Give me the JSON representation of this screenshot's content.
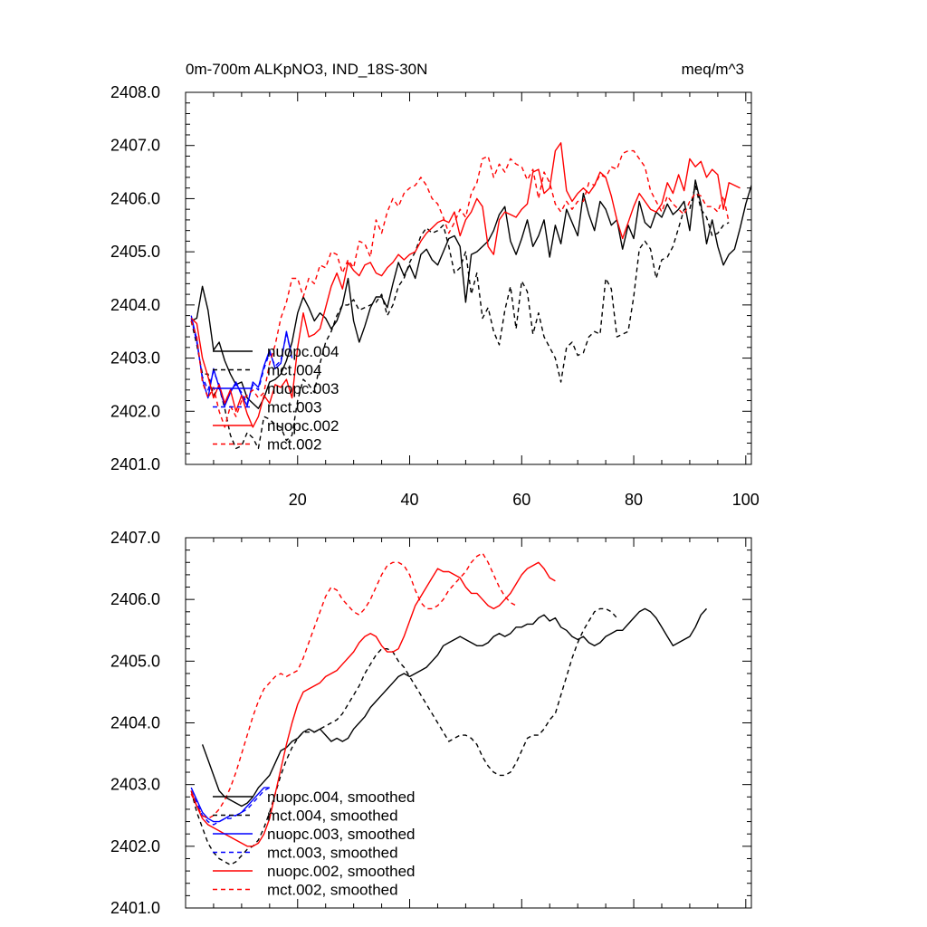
{
  "chart_data": [
    {
      "type": "line",
      "title": "0m-700m ALKpNO3, IND_18S-30N",
      "title_right": "meq/m^3",
      "xlabel": "",
      "ylabel": "",
      "xlim": [
        0,
        101
      ],
      "ylim": [
        2401.0,
        2408.0
      ],
      "xticks": [
        20,
        40,
        60,
        80,
        100
      ],
      "xtick_labels": [
        "20",
        "40",
        "60",
        "80",
        "100"
      ],
      "yticks": [
        2401.0,
        2402.0,
        2403.0,
        2404.0,
        2405.0,
        2406.0,
        2407.0,
        2408.0
      ],
      "ytick_labels": [
        "2401.0",
        "2402.0",
        "2403.0",
        "2404.0",
        "2405.0",
        "2406.0",
        "2407.0",
        "2408.0"
      ],
      "grid": false,
      "legend_position": "lower-left",
      "series": [
        {
          "name": "nuopc.004",
          "color": "#000000",
          "dash": "solid",
          "x_start": 1,
          "values": [
            2403.7,
            2403.75,
            2404.35,
            2403.9,
            2403.15,
            2403.3,
            2402.95,
            2402.7,
            2402.5,
            2402.55,
            2402.25,
            2402.15,
            2402.05,
            2402.25,
            2402.55,
            2402.6,
            2402.7,
            2402.95,
            2403.3,
            2403.85,
            2404.15,
            2403.95,
            2403.7,
            2403.85,
            2403.75,
            2403.55,
            2403.7,
            2404.0,
            2404.5,
            2403.7,
            2403.3,
            2403.6,
            2403.95,
            2404.15,
            2404.15,
            2403.95,
            2404.4,
            2404.8,
            2404.55,
            2404.75,
            2404.5,
            2404.95,
            2405.05,
            2404.85,
            2404.75,
            2405.0,
            2405.25,
            2405.3,
            2405.1,
            2404.05,
            2404.95,
            2405.0,
            2405.1,
            2405.2,
            2405.4,
            2405.7,
            2405.85,
            2405.2,
            2404.95,
            2405.25,
            2405.6,
            2405.1,
            2405.3,
            2405.6,
            2404.9,
            2405.5,
            2405.15,
            2405.8,
            2405.55,
            2405.3,
            2406.1,
            2405.7,
            2405.4,
            2405.95,
            2405.8,
            2405.5,
            2405.6,
            2405.05,
            2405.5,
            2405.25,
            2405.95,
            2405.55,
            2405.45,
            2405.75,
            2405.65,
            2405.9,
            2405.7,
            2405.8,
            2405.95,
            2405.4,
            2406.35,
            2405.9,
            2405.15,
            2405.6,
            2405.1,
            2404.75,
            2404.95,
            2405.05,
            2405.45,
            2405.9,
            2406.25,
            2405.85,
            2405.55
          ]
        },
        {
          "name": "mct.004",
          "color": "#000000",
          "dash": "dashed",
          "x_start": 1,
          "values": [
            2403.7,
            2403.25,
            2402.7,
            2402.7,
            2402.3,
            2402.45,
            2402.05,
            2401.55,
            2401.3,
            2401.35,
            2401.6,
            2401.5,
            2401.3,
            2401.9,
            2401.85,
            2401.75,
            2401.7,
            2401.45,
            2401.55,
            2402.2,
            2402.6,
            2402.5,
            2402.35,
            2402.9,
            2403.3,
            2403.5,
            2403.8,
            2404.0,
            2404.0,
            2404.1,
            2403.9,
            2403.95,
            2404.0,
            2404.05,
            2404.2,
            2403.8,
            2404.0,
            2404.35,
            2404.5,
            2404.8,
            2405.0,
            2405.3,
            2405.45,
            2405.35,
            2405.4,
            2405.5,
            2405.1,
            2404.6,
            2404.7,
            2405.0,
            2404.2,
            2404.6,
            2403.75,
            2403.95,
            2403.5,
            2403.25,
            2403.9,
            2404.35,
            2403.55,
            2404.45,
            2404.25,
            2403.45,
            2403.85,
            2403.4,
            2403.2,
            2403.0,
            2402.55,
            2403.2,
            2403.3,
            2403.05,
            2403.1,
            2403.4,
            2403.5,
            2403.45,
            2404.5,
            2404.3,
            2403.4,
            2403.45,
            2403.5,
            2404.15,
            2405.05,
            2405.2,
            2405.05,
            2404.5,
            2404.85,
            2404.9,
            2405.1,
            2405.45,
            2405.8,
            2405.8,
            2406.25,
            2405.8,
            2405.65,
            2405.3,
            2405.35,
            2405.5,
            2405.55
          ]
        },
        {
          "name": "nuopc.003",
          "color": "#0000ff",
          "dash": "solid",
          "x_start": 1,
          "values": [
            2403.8,
            2403.35,
            2402.6,
            2402.25,
            2402.8,
            2402.45,
            2402.1,
            2402.35,
            2402.55,
            2402.3,
            2402.1,
            2402.55,
            2402.45,
            2402.85,
            2403.15,
            2402.8,
            2402.9,
            2403.5,
            2403.0
          ]
        },
        {
          "name": "mct.003",
          "color": "#0000ff",
          "dash": "dashed",
          "x_start": 1,
          "values": [
            2403.75,
            2403.3,
            2402.65,
            2402.4,
            2402.75,
            2402.5,
            2402.15,
            2402.4,
            2402.5,
            2402.35,
            2402.15,
            2402.5,
            2402.4,
            2402.8,
            2403.1,
            2402.85,
            2402.95,
            2403.45,
            2403.05
          ]
        },
        {
          "name": "nuopc.002",
          "color": "#ff0000",
          "dash": "solid",
          "x_start": 1,
          "values": [
            2403.75,
            2403.65,
            2403.0,
            2402.65,
            2402.25,
            2402.5,
            2402.15,
            2402.4,
            2402.0,
            2402.3,
            2401.95,
            2401.7,
            2401.9,
            2402.3,
            2402.15,
            2402.5,
            2402.45,
            2402.6,
            2402.25,
            2403.2,
            2403.85,
            2403.4,
            2403.45,
            2403.55,
            2403.95,
            2404.35,
            2404.6,
            2404.3,
            2404.8,
            2404.65,
            2404.55,
            2404.75,
            2404.8,
            2404.6,
            2404.55,
            2404.7,
            2404.8,
            2404.95,
            2404.85,
            2404.95,
            2405.0,
            2405.2,
            2405.35,
            2405.45,
            2405.55,
            2405.6,
            2405.55,
            2405.75,
            2405.3,
            2405.6,
            2405.75,
            2406.0,
            2405.85,
            2405.1,
            2404.95,
            2405.6,
            2405.75,
            2405.7,
            2405.65,
            2405.8,
            2405.9,
            2406.5,
            2406.55,
            2406.1,
            2406.2,
            2406.9,
            2407.05,
            2406.15,
            2405.95,
            2406.1,
            2406.2,
            2406.1,
            2406.25,
            2406.5,
            2406.4,
            2406.05,
            2405.6,
            2405.25,
            2405.55,
            2405.85,
            2406.1,
            2405.95,
            2405.8,
            2405.75,
            2405.9,
            2406.3,
            2406.1,
            2406.45,
            2406.15,
            2406.75,
            2406.6,
            2406.7,
            2406.4,
            2406.55,
            2406.45,
            2405.8,
            2406.3,
            2406.25,
            2406.2
          ]
        },
        {
          "name": "mct.002",
          "color": "#ff0000",
          "dash": "dashed",
          "x_start": 1,
          "values": [
            2403.7,
            2403.4,
            2402.55,
            2402.25,
            2402.45,
            2402.0,
            2401.7,
            2402.1,
            2401.9,
            2402.2,
            2402.3,
            2402.4,
            2402.25,
            2402.35,
            2402.9,
            2403.25,
            2403.75,
            2404.05,
            2404.5,
            2404.5,
            2404.15,
            2404.5,
            2404.4,
            2404.75,
            2404.7,
            2405.0,
            2404.95,
            2404.6,
            2404.85,
            2404.7,
            2405.2,
            2405.15,
            2404.9,
            2405.6,
            2405.35,
            2405.75,
            2406.0,
            2405.85,
            2406.1,
            2406.2,
            2406.25,
            2406.4,
            2406.25,
            2406.0,
            2405.9,
            2405.65,
            2405.35,
            2405.55,
            2405.8,
            2405.65,
            2406.1,
            2406.3,
            2406.75,
            2406.8,
            2406.4,
            2406.65,
            2406.5,
            2406.75,
            2406.65,
            2406.6,
            2406.35,
            2406.55,
            2406.0,
            2406.5,
            2406.3,
            2405.9,
            2405.75,
            2405.95,
            2405.8,
            2405.95,
            2405.95,
            2406.3,
            2406.25,
            2406.45,
            2406.4,
            2406.6,
            2406.55,
            2406.85,
            2406.9,
            2406.9,
            2406.75,
            2406.6,
            2406.15,
            2405.95,
            2405.75,
            2406.05,
            2405.9,
            2405.8,
            2405.7,
            2405.95,
            2406.1,
            2406.05,
            2405.85,
            2405.85,
            2405.75,
            2406.05,
            2405.55
          ]
        }
      ]
    },
    {
      "type": "line",
      "title": "",
      "xlabel": "",
      "ylabel": "",
      "xlim": [
        0,
        101
      ],
      "ylim": [
        2401.0,
        2407.0
      ],
      "xticks": [
        20,
        40,
        60,
        80,
        100
      ],
      "xtick_labels": [
        "",
        "",
        "",
        "",
        ""
      ],
      "yticks": [
        2401.0,
        2402.0,
        2403.0,
        2404.0,
        2405.0,
        2406.0,
        2407.0
      ],
      "ytick_labels": [
        "2401.0",
        "2402.0",
        "2403.0",
        "2404.0",
        "2405.0",
        "2406.0",
        "2407.0"
      ],
      "grid": false,
      "legend_position": "lower-left",
      "series": [
        {
          "name": "nuopc.004, smoothed",
          "color": "#000000",
          "dash": "solid",
          "x_start": 3,
          "values": [
            2403.65,
            2403.4,
            2403.15,
            2402.9,
            2402.8,
            2402.75,
            2402.7,
            2402.65,
            2402.7,
            2402.8,
            2402.95,
            2403.05,
            2403.15,
            2403.35,
            2403.55,
            2403.6,
            2403.7,
            2403.75,
            2403.85,
            2403.9,
            2403.85,
            2403.9,
            2403.8,
            2403.7,
            2403.75,
            2403.7,
            2403.75,
            2403.9,
            2404.0,
            2404.1,
            2404.25,
            2404.35,
            2404.45,
            2404.55,
            2404.65,
            2404.75,
            2404.8,
            2404.75,
            2404.8,
            2404.85,
            2404.9,
            2405.0,
            2405.1,
            2405.25,
            2405.3,
            2405.35,
            2405.4,
            2405.35,
            2405.3,
            2405.25,
            2405.25,
            2405.3,
            2405.4,
            2405.45,
            2405.4,
            2405.45,
            2405.55,
            2405.55,
            2405.6,
            2405.6,
            2405.7,
            2405.75,
            2405.65,
            2405.7,
            2405.55,
            2405.5,
            2405.4,
            2405.35,
            2405.4,
            2405.3,
            2405.25,
            2405.3,
            2405.4,
            2405.45,
            2405.5,
            2405.5,
            2405.6,
            2405.7,
            2405.8,
            2405.85,
            2405.8,
            2405.7,
            2405.55,
            2405.4,
            2405.25,
            2405.3,
            2405.35,
            2405.4,
            2405.55,
            2405.75,
            2405.85
          ]
        },
        {
          "name": "mct.004, smoothed",
          "color": "#000000",
          "dash": "dashed",
          "x_start": 1,
          "values": [
            2402.9,
            2402.55,
            2402.3,
            2402.05,
            2401.9,
            2401.8,
            2401.75,
            2401.7,
            2401.75,
            2401.85,
            2401.95,
            2402.0,
            2402.1,
            2402.3,
            2402.55,
            2402.85,
            2403.15,
            2403.4,
            2403.6,
            2403.75,
            2403.85,
            2403.85,
            2403.85,
            2403.9,
            2403.95,
            2404.0,
            2404.05,
            2404.15,
            2404.3,
            2404.45,
            2404.6,
            2404.8,
            2404.95,
            2405.1,
            2405.2,
            2405.2,
            2405.15,
            2405.0,
            2404.9,
            2404.75,
            2404.6,
            2404.45,
            2404.3,
            2404.15,
            2404.0,
            2403.85,
            2403.7,
            2403.75,
            2403.8,
            2403.8,
            2403.75,
            2403.65,
            2403.45,
            2403.3,
            2403.2,
            2403.15,
            2403.15,
            2403.2,
            2403.35,
            2403.55,
            2403.75,
            2403.8,
            2403.8,
            2403.9,
            2404.05,
            2404.15,
            2404.45,
            2404.75,
            2405.05,
            2405.3,
            2405.5,
            2405.65,
            2405.8,
            2405.85,
            2405.85,
            2405.8,
            2405.7
          ]
        },
        {
          "name": "nuopc.003, smoothed",
          "color": "#0000ff",
          "dash": "solid",
          "x_start": 1,
          "values": [
            2402.95,
            2402.75,
            2402.55,
            2402.45,
            2402.4,
            2402.4,
            2402.45,
            2402.5,
            2402.5,
            2402.55,
            2402.65,
            2402.75,
            2402.85,
            2402.95,
            2402.95
          ]
        },
        {
          "name": "mct.003, smoothed",
          "color": "#0000ff",
          "dash": "dashed",
          "x_start": 1,
          "values": [
            2402.9,
            2402.7,
            2402.5,
            2402.4,
            2402.35,
            2402.4,
            2402.45,
            2402.45,
            2402.5,
            2402.55,
            2402.6,
            2402.7,
            2402.8,
            2402.9,
            2402.95
          ]
        },
        {
          "name": "nuopc.002, smoothed",
          "color": "#ff0000",
          "dash": "solid",
          "x_start": 1,
          "values": [
            2402.9,
            2402.65,
            2402.45,
            2402.35,
            2402.3,
            2402.25,
            2402.2,
            2402.15,
            2402.1,
            2402.05,
            2402.0,
            2402.0,
            2402.05,
            2402.2,
            2402.45,
            2402.85,
            2403.25,
            2403.65,
            2404.0,
            2404.3,
            2404.5,
            2404.55,
            2404.6,
            2404.65,
            2404.75,
            2404.8,
            2404.85,
            2404.95,
            2405.05,
            2405.15,
            2405.3,
            2405.4,
            2405.45,
            2405.4,
            2405.25,
            2405.15,
            2405.15,
            2405.2,
            2405.4,
            2405.65,
            2405.9,
            2406.05,
            2406.2,
            2406.35,
            2406.5,
            2406.45,
            2406.45,
            2406.4,
            2406.35,
            2406.2,
            2406.1,
            2406.1,
            2406.0,
            2405.9,
            2405.85,
            2405.9,
            2406.0,
            2406.1,
            2406.25,
            2406.4,
            2406.5,
            2406.55,
            2406.6,
            2406.5,
            2406.35,
            2406.3
          ]
        },
        {
          "name": "mct.002, smoothed",
          "color": "#ff0000",
          "dash": "dashed",
          "x_start": 1,
          "values": [
            2402.85,
            2402.65,
            2402.5,
            2402.45,
            2402.5,
            2402.6,
            2402.75,
            2402.95,
            2403.2,
            2403.5,
            2403.8,
            2404.1,
            2404.35,
            2404.55,
            2404.65,
            2404.75,
            2404.8,
            2404.75,
            2404.8,
            2404.85,
            2405.05,
            2405.3,
            2405.55,
            2405.8,
            2406.05,
            2406.2,
            2406.15,
            2406.0,
            2405.9,
            2405.8,
            2405.75,
            2405.85,
            2406.0,
            2406.2,
            2406.4,
            2406.55,
            2406.6,
            2406.6,
            2406.55,
            2406.4,
            2406.15,
            2405.95,
            2405.85,
            2405.85,
            2405.9,
            2406.0,
            2406.15,
            2406.25,
            2406.35,
            2406.45,
            2406.6,
            2406.7,
            2406.75,
            2406.6,
            2406.4,
            2406.2,
            2406.05,
            2405.95,
            2405.9
          ]
        }
      ]
    }
  ]
}
